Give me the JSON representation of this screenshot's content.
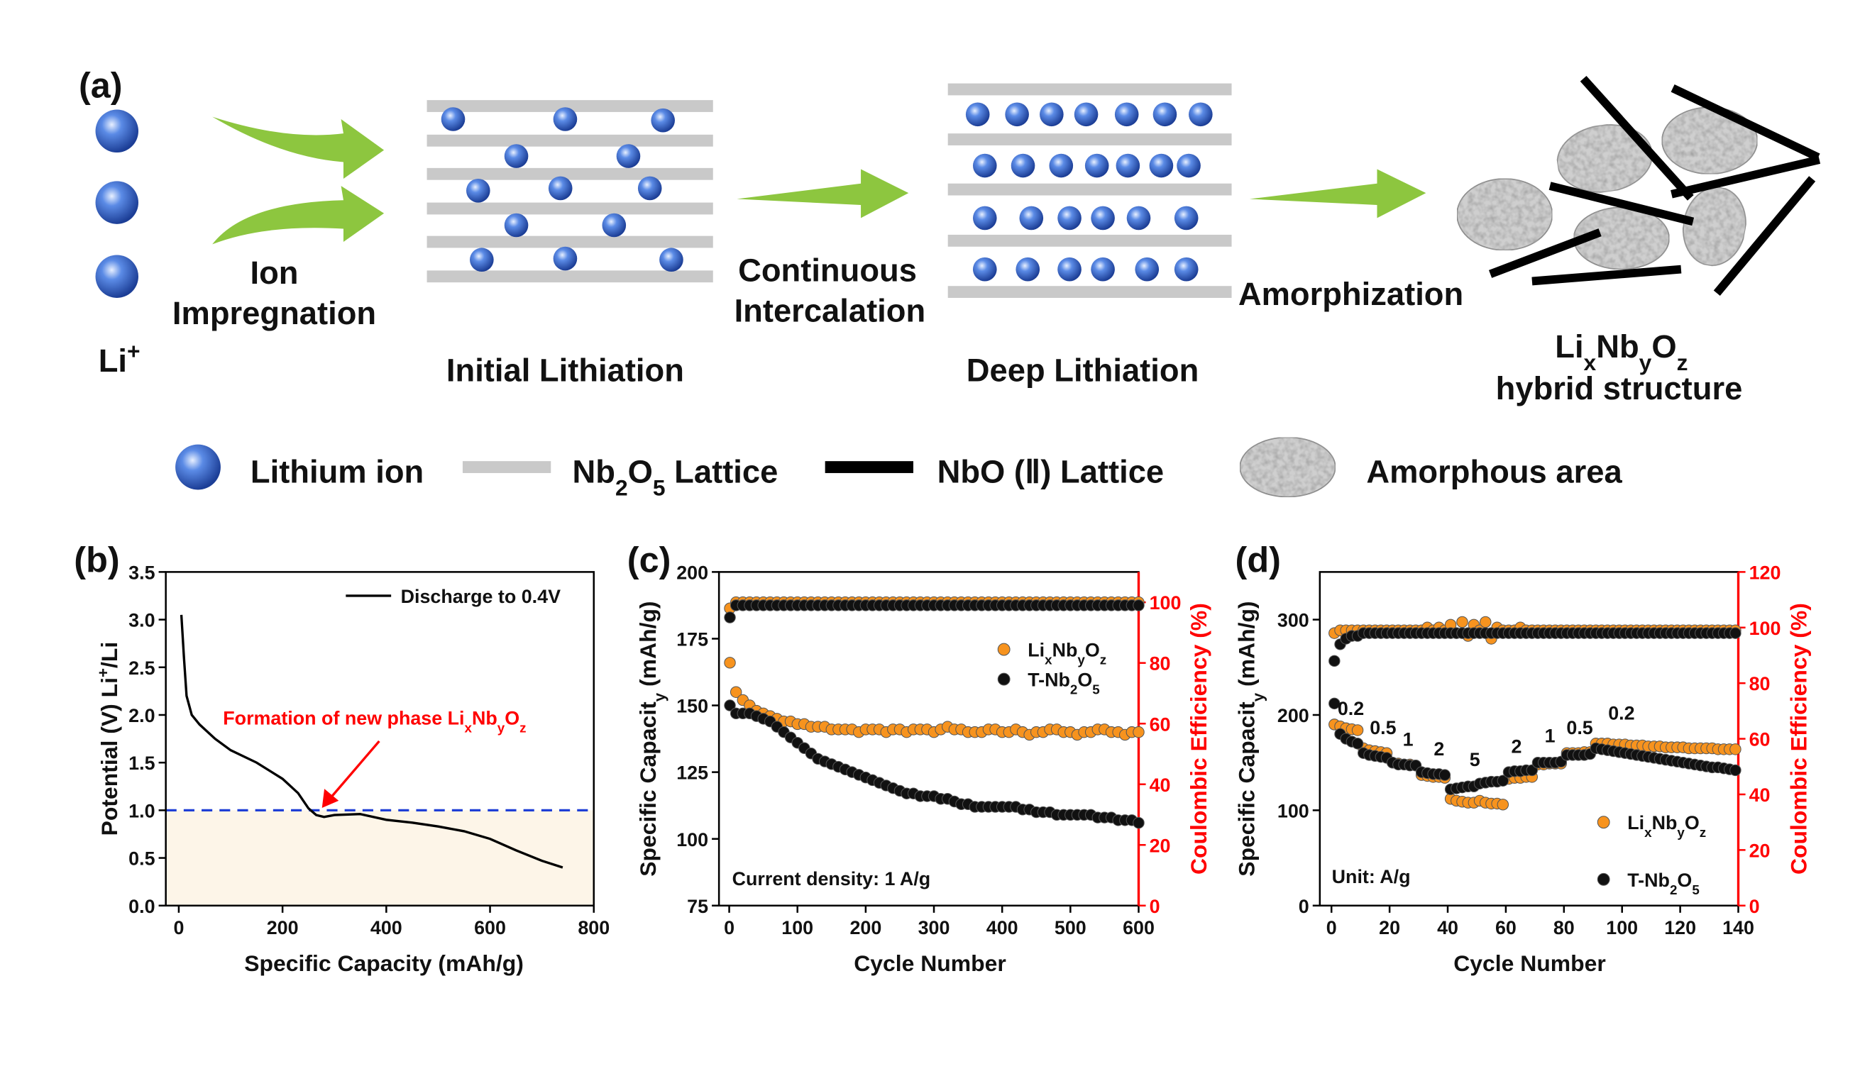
{
  "diagram": {
    "panel_label": "(a)",
    "ion_label": "Li+",
    "step1": [
      "Ion",
      "Impregnation"
    ],
    "stage1": "Initial Lithiation",
    "step2": [
      "Continuous",
      "Intercalation"
    ],
    "stage2": "Deep Lithiation",
    "step3": "Amorphization",
    "product": [
      "LixNbyOz",
      "hybrid structure"
    ],
    "legend": [
      "Lithium ion",
      "Nb2O5 Lattice",
      "NbO (Ⅱ) Lattice",
      "Amorphous area"
    ]
  },
  "chart_data": [
    {
      "type": "line",
      "panel_label": "(b)",
      "x_label": "Specific Capacity (mAh/g)",
      "y_label": "Potential (V) Li+/Li",
      "xlim": [
        -25,
        800
      ],
      "xticks": [
        0,
        200,
        400,
        600,
        800
      ],
      "ylim": [
        0,
        3.5
      ],
      "yticks": [
        {
          "value": 0,
          "label": "0.0"
        },
        0.5,
        {
          "value": 1,
          "label": "1.0"
        },
        1.5,
        {
          "value": 2,
          "label": "2.0"
        },
        2.5,
        {
          "value": 3,
          "label": "3.0"
        },
        3.5
      ],
      "x": [
        5,
        10,
        15,
        25,
        40,
        70,
        100,
        150,
        200,
        230,
        250,
        265,
        280,
        300,
        350,
        400,
        450,
        500,
        550,
        600,
        650,
        700,
        740
      ],
      "series": [
        {
          "name": "Discharge to 0.4V",
          "color": "#000000",
          "values": [
            3.05,
            2.6,
            2.2,
            2.0,
            1.9,
            1.75,
            1.63,
            1.5,
            1.33,
            1.18,
            1.02,
            0.95,
            0.93,
            0.95,
            0.96,
            0.9,
            0.87,
            0.83,
            0.78,
            0.7,
            0.58,
            0.47,
            0.4
          ]
        }
      ],
      "hline": 1,
      "hline_color": "#1f3fd6",
      "shade_color": "#fdf5e8",
      "annotation": "Formation of new phase LixNbyOz",
      "annotation_color": "#ff0000"
    },
    {
      "type": "scatter",
      "panel_label": "(c)",
      "x_label": "Cycle Number",
      "y_label": "Specific Capacity (mAh/g)",
      "y2_label": "Coulombic Efficiency (%)",
      "y2_color": "#ff0000",
      "xlim": [
        -15,
        600
      ],
      "xticks": [
        0,
        100,
        200,
        300,
        400,
        500,
        600
      ],
      "ylim": [
        75,
        200
      ],
      "yticks": [
        75,
        100,
        125,
        150,
        175,
        200
      ],
      "y2lim": [
        0,
        110
      ],
      "y2ticks": [
        0,
        20,
        40,
        60,
        80,
        100
      ],
      "note": "Current density: 1 A/g",
      "x": [
        1,
        10,
        20,
        30,
        40,
        50,
        60,
        70,
        80,
        90,
        100,
        110,
        120,
        130,
        140,
        150,
        160,
        170,
        180,
        190,
        200,
        210,
        220,
        230,
        240,
        250,
        260,
        270,
        280,
        290,
        300,
        310,
        320,
        330,
        340,
        350,
        360,
        370,
        380,
        390,
        400,
        410,
        420,
        430,
        440,
        450,
        460,
        470,
        480,
        490,
        500,
        510,
        520,
        530,
        540,
        550,
        560,
        570,
        580,
        590,
        600
      ],
      "series": [
        {
          "color": "#f7931e",
          "axis": "y2",
          "values": [
            98,
            100,
            100,
            100,
            100,
            100,
            100,
            100,
            100,
            100,
            100,
            100,
            100,
            100,
            100,
            100,
            100,
            100,
            100,
            100,
            100,
            100,
            100,
            100,
            100,
            100,
            100,
            100,
            100,
            100,
            100,
            100,
            100,
            100,
            100,
            100,
            100,
            100,
            100,
            100,
            100,
            100,
            100,
            100,
            100,
            100,
            100,
            100,
            100,
            100,
            100,
            100,
            100,
            100,
            100,
            100,
            100,
            100,
            100,
            100,
            100
          ]
        },
        {
          "color": "#111111",
          "axis": "y2",
          "values": [
            95,
            99,
            99,
            99,
            99,
            99,
            99,
            99,
            99,
            99,
            99,
            99,
            99,
            99,
            99,
            99,
            99,
            99,
            99,
            99,
            99,
            99,
            99,
            99,
            99,
            99,
            99,
            99,
            99,
            99,
            99,
            99,
            99,
            99,
            99,
            99,
            99,
            99,
            99,
            99,
            99,
            99,
            99,
            99,
            99,
            99,
            99,
            99,
            99,
            99,
            99,
            99,
            99,
            99,
            99,
            99,
            99,
            99,
            99,
            99,
            99
          ]
        },
        {
          "name": "LixNbyOz",
          "color": "#f7931e",
          "values": [
            166,
            155,
            152,
            150,
            148,
            147,
            146,
            145,
            144,
            144,
            143,
            143,
            142,
            142,
            142,
            141,
            141,
            141,
            141,
            140,
            141,
            141,
            141,
            140,
            141,
            141,
            140,
            141,
            141,
            141,
            140,
            141,
            142,
            141,
            141,
            140,
            140,
            140,
            141,
            141,
            140,
            140,
            141,
            140,
            139,
            140,
            140,
            141,
            141,
            140,
            140,
            139,
            140,
            140,
            141,
            141,
            140,
            140,
            139,
            140,
            140
          ]
        },
        {
          "name": "T-Nb2O5",
          "color": "#111111",
          "values": [
            150,
            147,
            147,
            147,
            146,
            145,
            144,
            142,
            140,
            138,
            136,
            134,
            132,
            130,
            129,
            128,
            127,
            126,
            125,
            124,
            123,
            122,
            121,
            120,
            119,
            118,
            117,
            117,
            116,
            116,
            116,
            115,
            115,
            114,
            113,
            113,
            112,
            112,
            112,
            112,
            112,
            112,
            112,
            111,
            111,
            110,
            110,
            110,
            109,
            109,
            109,
            109,
            109,
            109,
            108,
            108,
            108,
            107,
            107,
            107,
            106
          ]
        }
      ]
    },
    {
      "type": "scatter",
      "panel_label": "(d)",
      "x_label": "Cycle Number",
      "y_label": "Specific Capacity (mAh/g)",
      "y2_label": "Coulombic Efficiency (%)",
      "y2_color": "#ff0000",
      "xlim": [
        -4,
        140
      ],
      "xticks": [
        0,
        20,
        40,
        60,
        80,
        100,
        120,
        140
      ],
      "ylim": [
        0,
        350
      ],
      "yticks": [
        0,
        100,
        200,
        300
      ],
      "y2lim": [
        0,
        120
      ],
      "y2ticks": [
        0,
        20,
        40,
        60,
        80,
        100,
        120
      ],
      "note": "Unit: A/g",
      "rate_labels": [
        "0.2",
        "0.5",
        "1",
        "2",
        "5",
        "2",
        "1",
        "0.5",
        "0.2"
      ],
      "x": [
        1,
        3,
        5,
        7,
        9,
        11,
        13,
        15,
        17,
        19,
        21,
        23,
        25,
        27,
        29,
        31,
        33,
        35,
        37,
        39,
        41,
        43,
        45,
        47,
        49,
        51,
        53,
        55,
        57,
        59,
        61,
        63,
        65,
        67,
        69,
        71,
        73,
        75,
        77,
        79,
        81,
        83,
        85,
        87,
        89,
        91,
        93,
        95,
        97,
        99,
        101,
        103,
        105,
        107,
        109,
        111,
        113,
        115,
        117,
        119,
        121,
        123,
        125,
        127,
        129,
        131,
        133,
        135,
        137,
        139
      ],
      "series": [
        {
          "color": "#f7931e",
          "axis": "y2",
          "values": [
            98,
            99,
            99,
            99,
            99,
            99,
            99,
            99,
            99,
            99,
            99,
            99,
            99,
            99,
            99,
            99,
            100,
            99,
            100,
            99,
            101,
            98,
            102,
            97,
            101,
            99,
            102,
            96,
            100,
            99,
            99,
            99,
            100,
            99,
            99,
            99,
            99,
            99,
            99,
            99,
            99,
            99,
            99,
            99,
            99,
            99,
            99,
            99,
            99,
            99,
            99,
            99,
            99,
            99,
            99,
            99,
            99,
            99,
            99,
            99,
            99,
            99,
            99,
            99,
            99,
            99,
            99,
            99,
            99,
            99
          ]
        },
        {
          "color": "#111111",
          "axis": "y2",
          "values": [
            88,
            94,
            96,
            97,
            97,
            98,
            98,
            98,
            98,
            98,
            98,
            98,
            98,
            98,
            98,
            98,
            98,
            98,
            98,
            98,
            98,
            98,
            98,
            98,
            98,
            98,
            98,
            98,
            98,
            98,
            98,
            98,
            98,
            98,
            98,
            98,
            98,
            98,
            98,
            98,
            98,
            98,
            98,
            98,
            98,
            98,
            98,
            98,
            98,
            98,
            98,
            98,
            98,
            98,
            98,
            98,
            98,
            98,
            98,
            98,
            98,
            98,
            98,
            98,
            98,
            98,
            98,
            98,
            98,
            98
          ]
        },
        {
          "name": "LixNbyOz",
          "color": "#f7931e",
          "values": [
            190,
            188,
            186,
            185,
            184,
            165,
            163,
            162,
            161,
            160,
            150,
            149,
            148,
            148,
            147,
            137,
            136,
            135,
            135,
            134,
            112,
            110,
            109,
            108,
            108,
            110,
            108,
            107,
            107,
            106,
            133,
            134,
            134,
            135,
            135,
            148,
            148,
            149,
            149,
            149,
            160,
            160,
            160,
            161,
            161,
            170,
            170,
            170,
            169,
            169,
            169,
            168,
            168,
            168,
            167,
            167,
            167,
            166,
            166,
            166,
            166,
            165,
            165,
            165,
            165,
            165,
            164,
            164,
            164,
            164
          ]
        },
        {
          "name": "T-Nb2O5",
          "color": "#111111",
          "values": [
            212,
            180,
            175,
            172,
            170,
            160,
            158,
            157,
            156,
            155,
            150,
            148,
            148,
            147,
            147,
            140,
            139,
            138,
            138,
            137,
            122,
            123,
            124,
            125,
            125,
            128,
            129,
            130,
            130,
            131,
            140,
            141,
            141,
            142,
            142,
            150,
            150,
            150,
            150,
            151,
            158,
            158,
            158,
            158,
            159,
            165,
            164,
            163,
            162,
            161,
            160,
            159,
            158,
            157,
            156,
            155,
            154,
            153,
            152,
            151,
            150,
            149,
            148,
            147,
            146,
            145,
            145,
            144,
            143,
            142
          ]
        }
      ]
    }
  ]
}
